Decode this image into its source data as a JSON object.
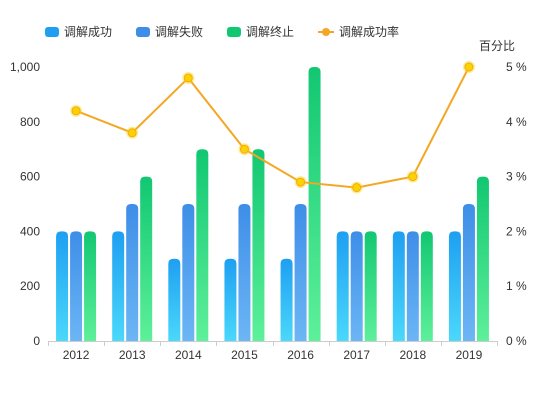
{
  "chart_data": {
    "type": "bar",
    "categories": [
      "2012",
      "2013",
      "2014",
      "2015",
      "2016",
      "2017",
      "2018",
      "2019"
    ],
    "series": [
      {
        "name": "调解成功",
        "type": "bar",
        "axis": "left",
        "values": [
          400,
          400,
          300,
          300,
          300,
          400,
          400,
          400
        ],
        "gradient": [
          "#1e9ff2",
          "#4ad8fb"
        ]
      },
      {
        "name": "调解失败",
        "type": "bar",
        "axis": "left",
        "values": [
          400,
          500,
          500,
          500,
          500,
          400,
          400,
          500
        ],
        "gradient": [
          "#3e8ee8",
          "#6cb6f5"
        ]
      },
      {
        "name": "调解终止",
        "type": "bar",
        "axis": "left",
        "values": [
          400,
          600,
          700,
          700,
          1000,
          400,
          400,
          600
        ],
        "gradient": [
          "#12c772",
          "#5ef09a"
        ]
      },
      {
        "name": "调解成功率",
        "type": "line",
        "axis": "right",
        "values": [
          4.2,
          3.8,
          4.8,
          3.5,
          2.9,
          2.8,
          3.0,
          5.0
        ],
        "color": "#f5a623",
        "marker_color": "#fbd400"
      }
    ],
    "left_axis": {
      "min": 0,
      "max": 1000,
      "ticks": [
        "0",
        "200",
        "400",
        "600",
        "800",
        "1,000"
      ]
    },
    "right_axis": {
      "name": "百分比",
      "min": 0,
      "max": 5,
      "ticks": [
        "0 %",
        "1 %",
        "2 %",
        "3 %",
        "4 %",
        "5 %"
      ]
    },
    "legend_position": "top-left",
    "grid": false
  }
}
